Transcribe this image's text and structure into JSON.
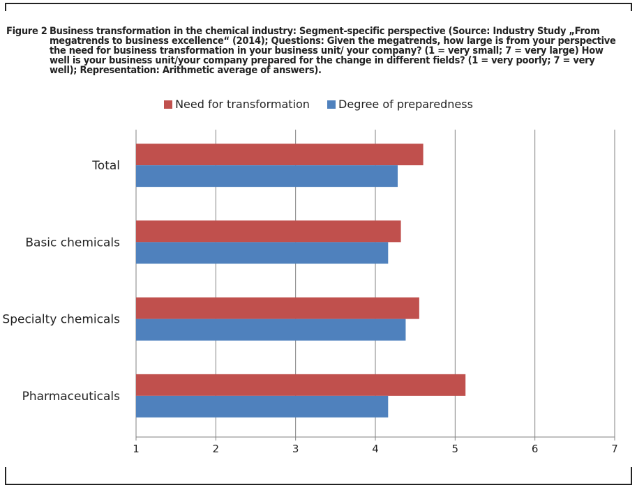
{
  "figure": {
    "label": "Figure 2",
    "caption": "Business transformation in the chemical industry: Segment-specific perspective (Source: Industry Study „From megatrends to business excellence“ (2014); Questions: Given the megatrends, how large is from your perspective the need for business transformation in your business unit/ your company? (1 = very small; 7 = very large) How well is your business unit/your company prepared for the change in different fields? (1 = very poorly; 7 = very well); Representation: Arithmetic average of answers)."
  },
  "colors": {
    "need": "#c0504d",
    "prepared": "#4f81bd",
    "grid": "#808080"
  },
  "chart_data": {
    "type": "bar",
    "orientation": "horizontal",
    "categories": [
      "Total",
      "Basic chemicals",
      "Specialty chemicals",
      "Pharmaceuticals"
    ],
    "series": [
      {
        "name": "Need for transformation",
        "values": [
          4.6,
          4.32,
          4.55,
          5.13
        ]
      },
      {
        "name": "Degree of preparedness",
        "values": [
          4.28,
          4.16,
          4.38,
          4.16
        ]
      }
    ],
    "xlim": [
      1,
      7
    ],
    "xticks": [
      "1",
      "2",
      "3",
      "4",
      "5",
      "6",
      "7"
    ],
    "grid": true,
    "legend_position": "top"
  }
}
